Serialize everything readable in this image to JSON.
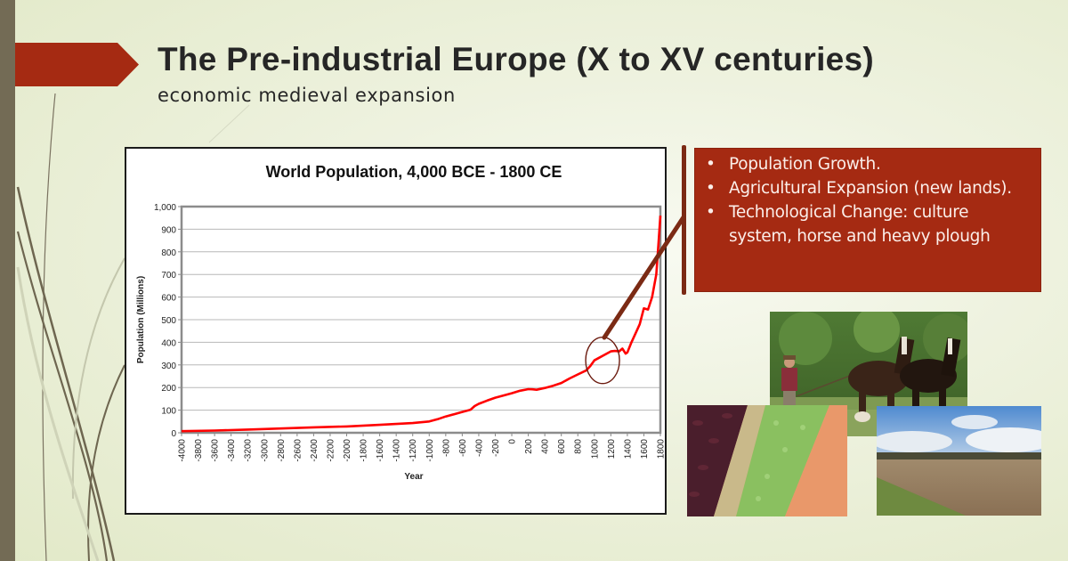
{
  "slide": {
    "title": "The Pre-industrial Europe (X to XV centuries)",
    "subtitle": "economic medieval expansion",
    "colors": {
      "accent": "#a52a12",
      "strip": "#736b55",
      "background": "#e8eed6",
      "title_text": "#262626",
      "pointer": "#7b2a14"
    }
  },
  "bullets": {
    "items": [
      {
        "marker": "•",
        "text": "Population Growth."
      },
      {
        "marker": "•",
        "text": "Agricultural Expansion (new lands)."
      },
      {
        "marker": "•",
        "text": "Technological Change: culture system, horse and heavy plough"
      }
    ]
  },
  "photos": [
    {
      "name": "horse-plough-photo",
      "description": "Farmer ploughing with two draft horses"
    },
    {
      "name": "plowed-field-photo",
      "description": "Plowed field under blue sky"
    },
    {
      "name": "beans-legumes-photo",
      "description": "Rows of beans, lentils and split peas"
    }
  ],
  "chart_data": {
    "type": "line",
    "title": "World Population, 4,000 BCE - 1800 CE",
    "xlabel": "Year",
    "ylabel": "Population (Millions)",
    "xlim": [
      -4000,
      1800
    ],
    "ylim": [
      0,
      1000
    ],
    "grid": true,
    "legend": "none",
    "line_color": "#ff0000",
    "y_ticks": [
      "0",
      "100",
      "200",
      "300",
      "400",
      "500",
      "600",
      "700",
      "800",
      "900",
      "1,000"
    ],
    "x_ticks": [
      "-4000",
      "-3800",
      "-3600",
      "-3400",
      "-3200",
      "-3000",
      "-2800",
      "-2600",
      "-2400",
      "-2200",
      "-2000",
      "-1800",
      "-1600",
      "-1400",
      "-1200",
      "-1000",
      "-800",
      "-600",
      "-400",
      "-200",
      "0",
      "200",
      "400",
      "600",
      "800",
      "1000",
      "1200",
      "1400",
      "1600",
      "1800"
    ],
    "series": [
      {
        "name": "World Population",
        "x": [
          -4000,
          -3600,
          -3200,
          -2800,
          -2400,
          -2000,
          -1600,
          -1200,
          -1000,
          -900,
          -800,
          -700,
          -600,
          -500,
          -450,
          -400,
          -300,
          -200,
          -100,
          0,
          100,
          200,
          250,
          300,
          350,
          400,
          500,
          600,
          700,
          800,
          900,
          950,
          1000,
          1050,
          1100,
          1150,
          1200,
          1250,
          1300,
          1340,
          1380,
          1400,
          1450,
          1500,
          1550,
          1600,
          1650,
          1700,
          1750,
          1780,
          1800
        ],
        "values": [
          7,
          10,
          14,
          19,
          24,
          28,
          35,
          43,
          50,
          60,
          72,
          82,
          92,
          102,
          118,
          128,
          142,
          155,
          165,
          175,
          186,
          193,
          192,
          190,
          194,
          198,
          208,
          220,
          240,
          258,
          275,
          295,
          320,
          330,
          340,
          350,
          360,
          362,
          360,
          372,
          350,
          355,
          400,
          440,
          480,
          550,
          545,
          600,
          700,
          850,
          960
        ]
      }
    ],
    "annotations": [
      {
        "type": "ellipse",
        "center_x": 1100,
        "center_y": 320,
        "label": "highlight 1000-1200 CE"
      }
    ]
  }
}
